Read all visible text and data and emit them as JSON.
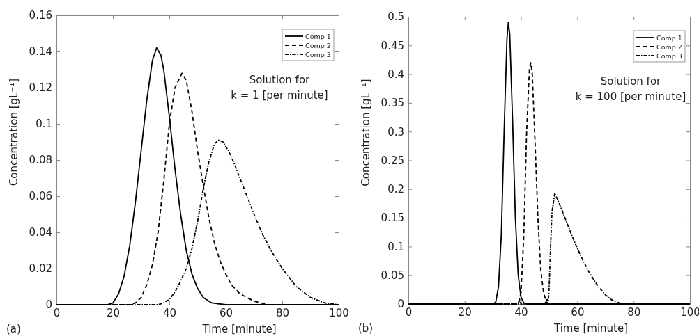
{
  "chart_data": [
    {
      "type": "line",
      "xlabel": "Time [minute]",
      "ylabel": "Concentration [gL⁻¹]",
      "xlim": [
        0,
        100
      ],
      "xticks": [
        0,
        20,
        40,
        60,
        80,
        100
      ],
      "ylim": [
        0,
        0.16
      ],
      "yticks": [
        0,
        0.02,
        0.04,
        0.06,
        0.08,
        0.1,
        0.12,
        0.14,
        0.16
      ],
      "grid": false,
      "legend": "top right",
      "marker": "none",
      "annotations": [
        "(a)",
        "Solution for\nk = 1 [per minute]"
      ],
      "series": [
        {
          "name": "Comp 1",
          "color": "#000000",
          "line_style": "solid",
          "x": [
            0,
            18,
            20,
            22,
            24,
            26,
            28,
            30,
            32,
            34,
            35.5,
            37,
            38,
            40,
            42,
            44,
            46,
            48,
            50,
            52,
            55,
            60,
            100
          ],
          "values": [
            0,
            0,
            0.001,
            0.006,
            0.016,
            0.033,
            0.057,
            0.085,
            0.113,
            0.135,
            0.142,
            0.138,
            0.13,
            0.104,
            0.075,
            0.05,
            0.03,
            0.017,
            0.009,
            0.004,
            0.001,
            0,
            0
          ]
        },
        {
          "name": "Comp 2",
          "color": "#000000",
          "line_style": "dashed",
          "x": [
            0,
            26,
            28,
            30,
            32,
            34,
            36,
            38,
            40,
            42,
            44.5,
            46,
            48,
            50,
            52,
            54,
            56,
            58,
            60,
            62,
            65,
            70,
            75,
            100
          ],
          "values": [
            0,
            0,
            0.001,
            0.004,
            0.011,
            0.022,
            0.04,
            0.068,
            0.1,
            0.12,
            0.128,
            0.124,
            0.107,
            0.085,
            0.066,
            0.048,
            0.034,
            0.024,
            0.017,
            0.011,
            0.006,
            0.002,
            0,
            0
          ]
        },
        {
          "name": "Comp 3",
          "color": "#000000",
          "line_style": "dotted",
          "x": [
            0,
            36,
            38,
            40,
            42,
            44,
            46,
            48,
            50,
            52,
            54,
            56,
            57.5,
            59,
            61,
            63,
            65,
            67,
            70,
            73,
            76,
            80,
            85,
            90,
            95,
            100
          ],
          "values": [
            0,
            0,
            0.001,
            0.003,
            0.007,
            0.013,
            0.02,
            0.031,
            0.046,
            0.064,
            0.079,
            0.089,
            0.091,
            0.09,
            0.085,
            0.078,
            0.07,
            0.062,
            0.05,
            0.039,
            0.03,
            0.02,
            0.01,
            0.004,
            0.001,
            0
          ]
        }
      ]
    },
    {
      "type": "line",
      "xlabel": "Time [minute]",
      "ylabel": "Concentration [gL⁻¹]",
      "xlim": [
        0,
        100
      ],
      "xticks": [
        0,
        20,
        40,
        60,
        80,
        100
      ],
      "ylim": [
        0,
        0.5
      ],
      "yticks": [
        0,
        0.05,
        0.1,
        0.15,
        0.2,
        0.25,
        0.3,
        0.35,
        0.4,
        0.45,
        0.5
      ],
      "grid": false,
      "legend": "top right",
      "marker": "none",
      "annotations": [
        "(b)",
        "Solution for\nk = 100 [per minute]"
      ],
      "series": [
        {
          "name": "Comp 1",
          "color": "#000000",
          "line_style": "solid",
          "x": [
            0,
            30,
            31,
            32,
            33,
            34,
            35,
            35.5,
            36,
            37,
            38,
            39,
            40,
            41,
            42,
            100
          ],
          "values": [
            0,
            0,
            0.003,
            0.03,
            0.12,
            0.3,
            0.46,
            0.49,
            0.47,
            0.32,
            0.15,
            0.05,
            0.012,
            0.002,
            0,
            0
          ]
        },
        {
          "name": "Comp 2",
          "color": "#000000",
          "line_style": "dashed",
          "x": [
            0,
            39,
            40,
            41,
            42,
            43,
            43.5,
            44,
            45,
            46,
            47,
            48,
            49,
            50,
            100
          ],
          "values": [
            0,
            0,
            0.02,
            0.12,
            0.3,
            0.41,
            0.42,
            0.4,
            0.28,
            0.15,
            0.06,
            0.02,
            0.004,
            0,
            0
          ]
        },
        {
          "name": "Comp 3",
          "color": "#000000",
          "line_style": "dotted",
          "x": [
            0,
            39,
            39.5,
            40,
            48,
            49,
            49.3,
            49.7,
            50,
            50.5,
            51,
            52,
            54,
            56,
            58,
            60,
            62,
            64,
            66,
            68,
            70,
            72,
            74,
            76,
            80,
            100
          ],
          "values": [
            0,
            0,
            0.008,
            0,
            0,
            0.004,
            0.008,
            0.004,
            0.03,
            0.1,
            0.16,
            0.193,
            0.17,
            0.145,
            0.12,
            0.097,
            0.076,
            0.057,
            0.041,
            0.027,
            0.016,
            0.008,
            0.003,
            0.001,
            0,
            0
          ]
        }
      ]
    }
  ]
}
